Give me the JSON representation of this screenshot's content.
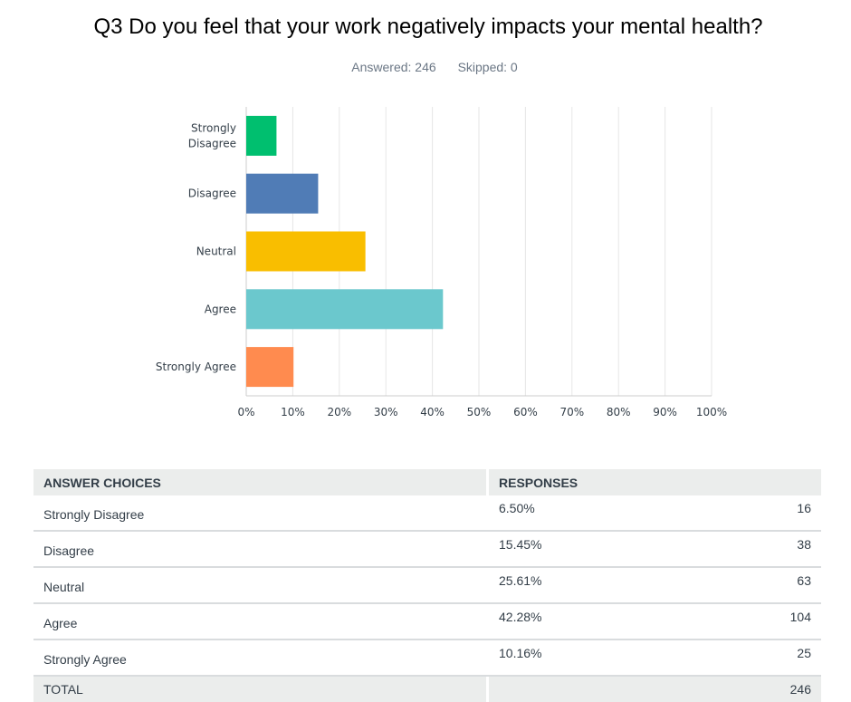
{
  "title": "Q3 Do you feel that your work negatively impacts your mental health?",
  "stats": {
    "answered": "Answered: 246",
    "skipped": "Skipped: 0"
  },
  "chart_data": {
    "type": "bar",
    "orientation": "horizontal",
    "categories": [
      "Strongly Disagree",
      "Disagree",
      "Neutral",
      "Agree",
      "Strongly Agree"
    ],
    "category_lines": [
      [
        "Strongly",
        "Disagree"
      ],
      [
        "Disagree"
      ],
      [
        "Neutral"
      ],
      [
        "Agree"
      ],
      [
        "Strongly Agree"
      ]
    ],
    "values": [
      6.5,
      15.45,
      25.61,
      42.28,
      10.16
    ],
    "colors": [
      "#00bf6f",
      "#507cb6",
      "#f9be00",
      "#6bc8cd",
      "#ff8b4f"
    ],
    "xlim": [
      0,
      100
    ],
    "ticks": [
      "0%",
      "10%",
      "20%",
      "30%",
      "40%",
      "50%",
      "60%",
      "70%",
      "80%",
      "90%",
      "100%"
    ],
    "grid": true
  },
  "table": {
    "headers": {
      "choices": "ANSWER CHOICES",
      "responses": "RESPONSES"
    },
    "rows": [
      {
        "choice": "Strongly Disagree",
        "percent": "6.50%",
        "count": "16"
      },
      {
        "choice": "Disagree",
        "percent": "15.45%",
        "count": "38"
      },
      {
        "choice": "Neutral",
        "percent": "25.61%",
        "count": "63"
      },
      {
        "choice": "Agree",
        "percent": "42.28%",
        "count": "104"
      },
      {
        "choice": "Strongly Agree",
        "percent": "10.16%",
        "count": "25"
      }
    ],
    "total": {
      "label": "TOTAL",
      "count": "246"
    }
  },
  "colors": {
    "grid": "#e6e6e6",
    "axis": "#cccccc",
    "header_bg": "#ebedec"
  }
}
